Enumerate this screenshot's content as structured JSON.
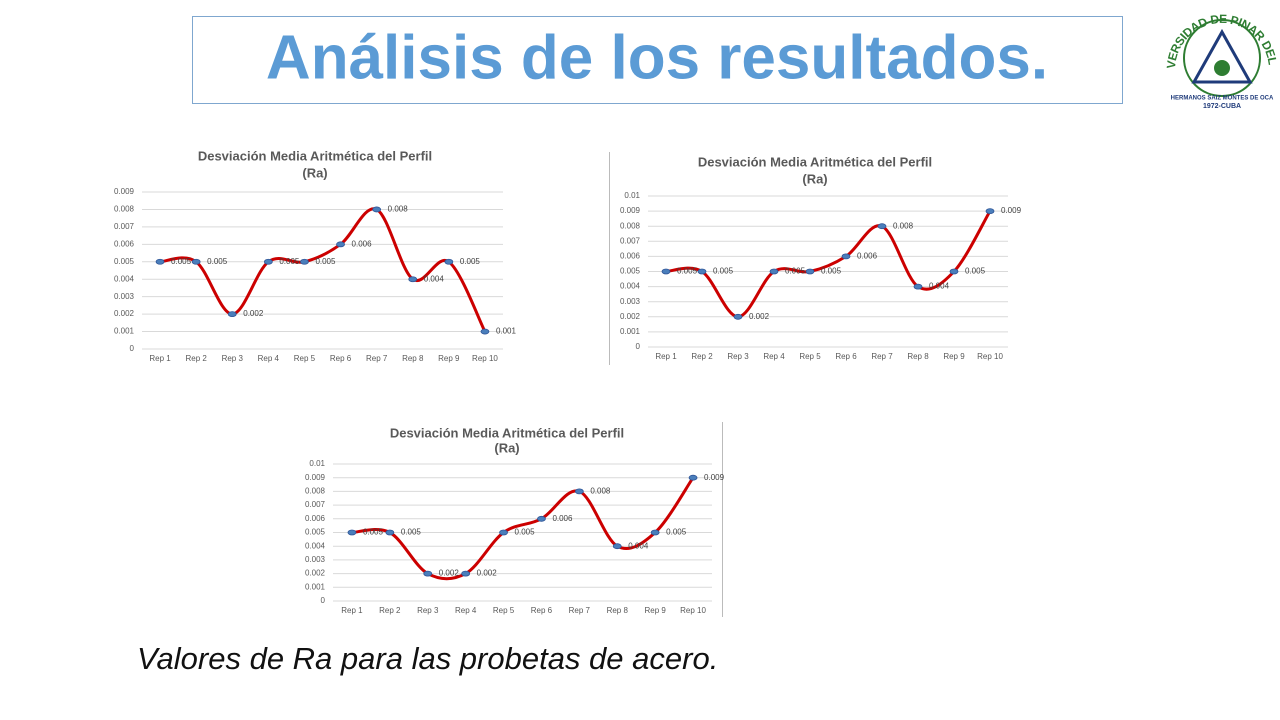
{
  "title": "Análisis de los resultados.",
  "caption": "Valores de Ra para las probetas de acero.",
  "logo": {
    "name": "UNIVERSIDAD DE PINAR DEL RIO",
    "motto": "HERMANOS SAIZ MONTES DE OCA",
    "year": "1972-CUBA"
  },
  "chart_data": [
    {
      "type": "line",
      "title": "Desviación Media Aritmética del Perfil",
      "subtitle": "(Ra)",
      "categories": [
        "Rep 1",
        "Rep 2",
        "Rep 3",
        "Rep 4",
        "Rep 5",
        "Rep 6",
        "Rep 7",
        "Rep 8",
        "Rep 9",
        "Rep 10"
      ],
      "values": [
        0.005,
        0.005,
        0.002,
        0.005,
        0.005,
        0.006,
        0.008,
        0.004,
        0.005,
        0.001
      ],
      "color": "#cc0000",
      "smooth": true,
      "grid": true,
      "ylim": [
        0,
        0.009
      ],
      "yticks": [
        0,
        0.001,
        0.002,
        0.003,
        0.004,
        0.005,
        0.006,
        0.007,
        0.008,
        0.009
      ]
    },
    {
      "type": "line",
      "title": "Desviación Media Aritmética del Perfil",
      "subtitle": "(Ra)",
      "categories": [
        "Rep 1",
        "Rep 2",
        "Rep 3",
        "Rep 4",
        "Rep 5",
        "Rep 6",
        "Rep 7",
        "Rep 8",
        "Rep 9",
        "Rep 10"
      ],
      "values": [
        0.005,
        0.005,
        0.002,
        0.005,
        0.005,
        0.006,
        0.008,
        0.004,
        0.005,
        0.009
      ],
      "color": "#cc0000",
      "smooth": true,
      "grid": true,
      "ylim": [
        0,
        0.01
      ],
      "yticks": [
        0,
        0.001,
        0.002,
        0.003,
        0.004,
        0.005,
        0.006,
        0.007,
        0.008,
        0.009,
        0.01
      ]
    },
    {
      "type": "line",
      "title": "Desviación Media Aritmética del Perfil",
      "subtitle": "(Ra)",
      "categories": [
        "Rep 1",
        "Rep 2",
        "Rep 3",
        "Rep 4",
        "Rep 5",
        "Rep 6",
        "Rep 7",
        "Rep 8",
        "Rep 9",
        "Rep 10"
      ],
      "values": [
        0.005,
        0.005,
        0.002,
        0.002,
        0.005,
        0.006,
        0.008,
        0.004,
        0.005,
        0.009
      ],
      "color": "#cc0000",
      "smooth": true,
      "grid": true,
      "ylim": [
        0,
        0.01
      ],
      "yticks": [
        0,
        0.001,
        0.002,
        0.003,
        0.004,
        0.005,
        0.006,
        0.007,
        0.008,
        0.009,
        0.01
      ]
    }
  ]
}
